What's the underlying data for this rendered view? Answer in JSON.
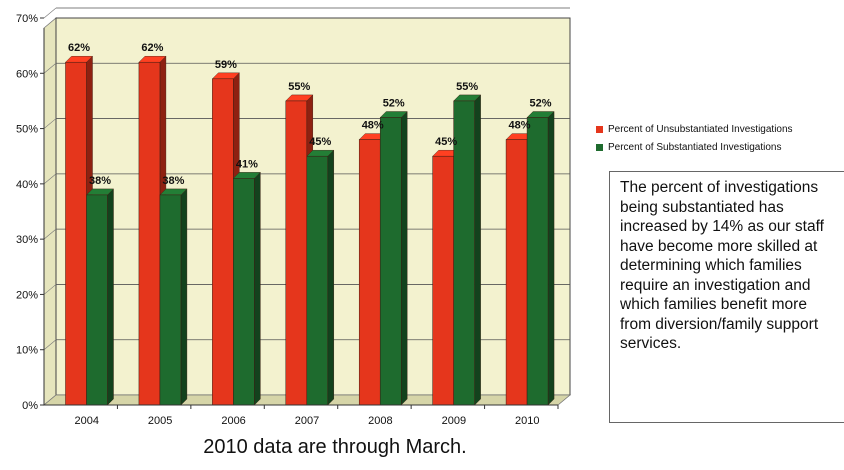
{
  "chart_data": {
    "type": "bar",
    "categories": [
      "2004",
      "2005",
      "2006",
      "2007",
      "2008",
      "2009",
      "2010"
    ],
    "series": [
      {
        "name": "Percent of Unsubstantiated Investigations",
        "color": "#e5361c",
        "values": [
          62,
          62,
          59,
          55,
          48,
          45,
          48
        ],
        "labels": [
          "62%",
          "62%",
          "59%",
          "55%",
          "48%",
          "45%",
          "48%"
        ]
      },
      {
        "name": "Percent of Substantiated Investigations",
        "color": "#1e6b2e",
        "values": [
          38,
          38,
          41,
          45,
          52,
          55,
          52
        ],
        "labels": [
          "38%",
          "38%",
          "41%",
          "45%",
          "52%",
          "55%",
          "52%"
        ]
      }
    ],
    "ylim": [
      0,
      70
    ],
    "yticks": [
      0,
      10,
      20,
      30,
      40,
      50,
      60,
      70
    ],
    "ytick_labels": [
      "0%",
      "10%",
      "20%",
      "30%",
      "40%",
      "50%",
      "60%",
      "70%"
    ],
    "grid": true,
    "legend_position": "right",
    "background_color": "#f3f2cf"
  },
  "note_text": "The percent of investigations being substantiated has increased by 14% as our staff have become more skilled at determining which families require an investigation and which families benefit more from diversion/family support services.",
  "caption": "2010 data are through March."
}
